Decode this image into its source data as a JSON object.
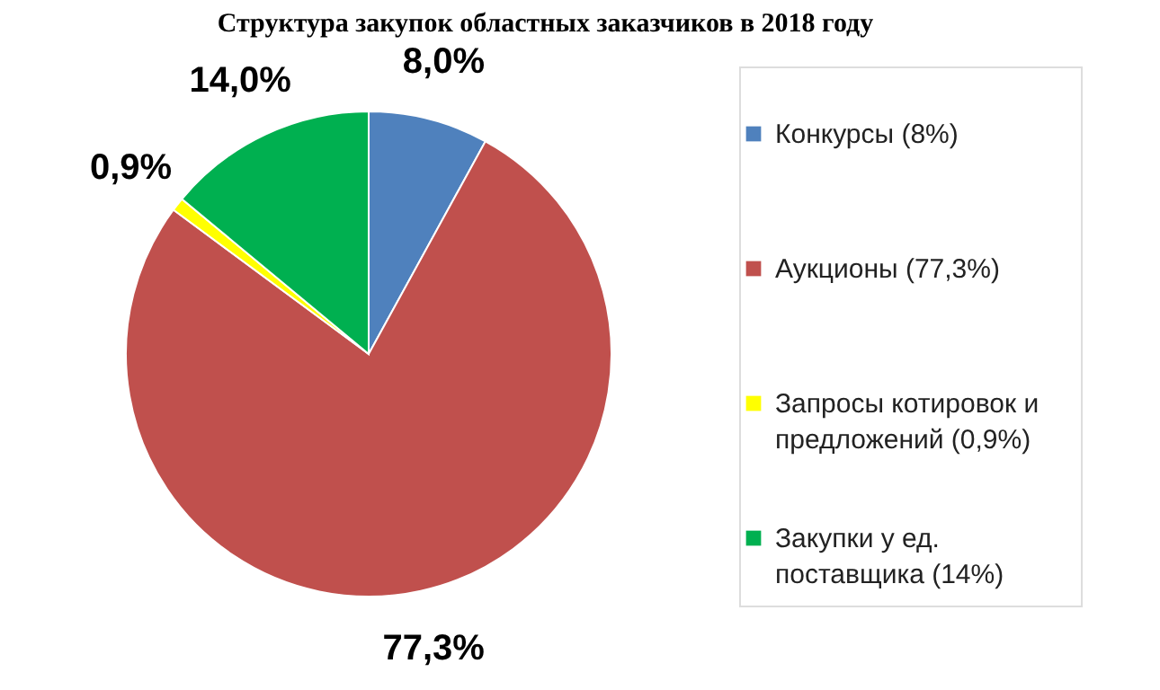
{
  "chart_data": {
    "type": "pie",
    "title": "Структура закупок областных заказчиков в 2018 году",
    "categories": [
      "Конкурсы (8%)",
      "Аукционы (77,3%)",
      "Запросы котировок и предложений (0,9%)",
      "Закупки у ед. поставщика (14%)"
    ],
    "values": [
      8.0,
      77.3,
      0.9,
      14.0
    ],
    "colors": [
      "#4f81bd",
      "#c0504d",
      "#ffff00",
      "#00b050"
    ],
    "value_labels": [
      "8,0%",
      "77,3%",
      "0,9%",
      "14,0%"
    ],
    "legend": "right"
  }
}
